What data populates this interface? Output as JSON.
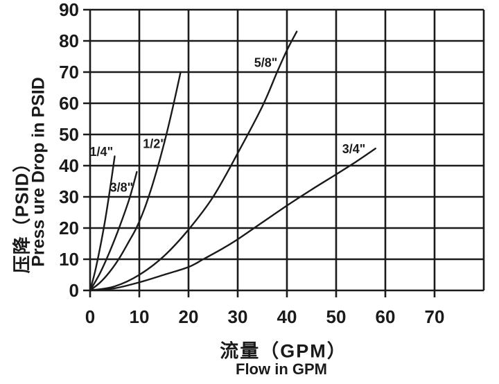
{
  "colors": {
    "ink": "#1a1a1a",
    "background": "#ffffff"
  },
  "chart_data": {
    "type": "line",
    "title": "",
    "grid": true,
    "legend_position": "inline-curve-labels",
    "x_axis": {
      "label_zh": "流量（GPM）",
      "label_en": "Flow in GPM",
      "min": 0,
      "max": 80,
      "gridline_step": 10,
      "ticks": [
        0,
        10,
        20,
        30,
        40,
        50,
        60,
        70
      ]
    },
    "y_axis": {
      "label_zh": "压降（PSID）",
      "label_en": "Press ure Drop in PSID",
      "min": 0,
      "max": 90,
      "gridline_step": 10,
      "ticks": [
        0,
        10,
        20,
        30,
        40,
        50,
        60,
        70,
        80,
        90
      ]
    },
    "series": [
      {
        "name": "1/4\"",
        "label_anchor": {
          "x": 2.3,
          "y": 44.5
        },
        "points": [
          [
            0,
            0
          ],
          [
            1,
            6
          ],
          [
            2,
            13.5
          ],
          [
            3,
            22
          ],
          [
            4,
            32
          ],
          [
            5,
            43
          ]
        ]
      },
      {
        "name": "3/8\"",
        "label_anchor": {
          "x": 6.4,
          "y": 33
        },
        "points": [
          [
            0,
            0
          ],
          [
            2,
            5.5
          ],
          [
            4,
            12.5
          ],
          [
            6,
            20.5
          ],
          [
            8,
            29.5
          ],
          [
            9.5,
            38
          ]
        ]
      },
      {
        "name": "1/2\"",
        "label_anchor": {
          "x": 13.1,
          "y": 47
        },
        "points": [
          [
            0,
            0
          ],
          [
            2,
            2.5
          ],
          [
            4,
            6
          ],
          [
            6,
            10.5
          ],
          [
            8,
            16
          ],
          [
            9.4,
            20
          ],
          [
            11,
            26
          ],
          [
            12.5,
            33
          ],
          [
            14,
            41
          ],
          [
            15.5,
            50
          ],
          [
            17,
            60
          ],
          [
            18.4,
            70
          ]
        ]
      },
      {
        "name": "5/8\"",
        "label_anchor": {
          "x": 35.7,
          "y": 73
        },
        "points": [
          [
            0,
            0
          ],
          [
            5,
            1.3
          ],
          [
            10,
            5
          ],
          [
            15,
            11
          ],
          [
            20,
            19.5
          ],
          [
            25,
            30
          ],
          [
            30,
            44
          ],
          [
            35,
            59
          ],
          [
            38,
            70
          ],
          [
            40,
            77
          ],
          [
            42,
            83
          ]
        ]
      },
      {
        "name": "3/4\"",
        "label_anchor": {
          "x": 53.6,
          "y": 45.3
        },
        "points": [
          [
            0,
            0
          ],
          [
            5,
            0.7
          ],
          [
            10,
            2.6
          ],
          [
            15,
            5
          ],
          [
            20,
            7.5
          ],
          [
            23,
            10
          ],
          [
            27,
            13.5
          ],
          [
            30,
            16.4
          ],
          [
            35,
            21.8
          ],
          [
            40,
            27.2
          ],
          [
            45,
            32.3
          ],
          [
            50,
            37.2
          ],
          [
            54,
            41.2
          ],
          [
            58,
            45.5
          ]
        ]
      }
    ]
  }
}
